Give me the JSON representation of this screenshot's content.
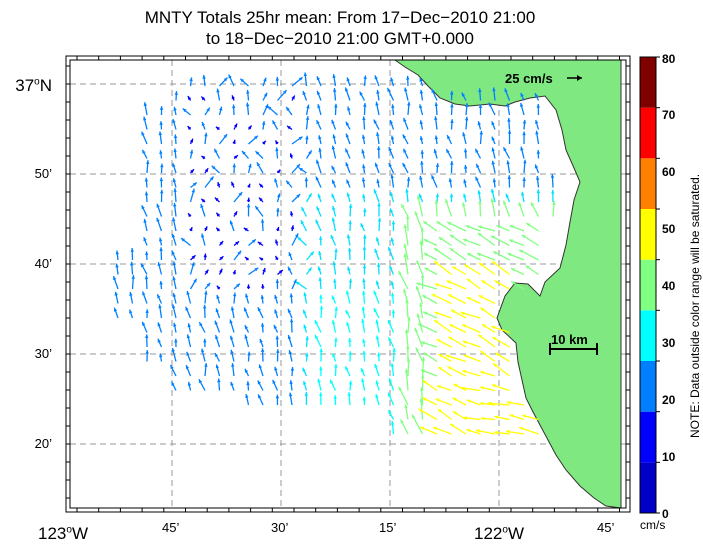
{
  "title": {
    "line1": "MNTY Totals 25hr mean: From 17−Dec−2010 21:00",
    "line2": "to 18−Dec−2010 21:00 GMT+0.000"
  },
  "axes": {
    "lat_labels": [
      {
        "deg": "37",
        "sup": "o",
        "suffix": "N"
      },
      {
        "text": "50’"
      },
      {
        "text": "40’"
      },
      {
        "text": "30’"
      },
      {
        "text": "20’"
      }
    ],
    "lon_labels": [
      {
        "deg": "123",
        "sup": "o",
        "suffix": "W"
      },
      {
        "text": "45’"
      },
      {
        "text": "30’"
      },
      {
        "text": "15’"
      },
      {
        "deg": "122",
        "sup": "o",
        "suffix": "W"
      },
      {
        "text": "45’"
      }
    ]
  },
  "scale": {
    "vector_label": "25 cm/s",
    "distance_label": "10 km"
  },
  "colorbar": {
    "ticks": [
      "80",
      "70",
      "60",
      "50",
      "40",
      "30",
      "20",
      "10",
      "0"
    ],
    "colors": [
      "#0000c8",
      "#0000ff",
      "#0080ff",
      "#00ffff",
      "#80ff80",
      "#ffff00",
      "#ff8000",
      "#ff0000",
      "#800000"
    ],
    "unit": "cm/s",
    "note": "NOTE: Data outside color range will be saturated."
  },
  "colors": {
    "land": "#80e880",
    "grid": "#999999"
  }
}
